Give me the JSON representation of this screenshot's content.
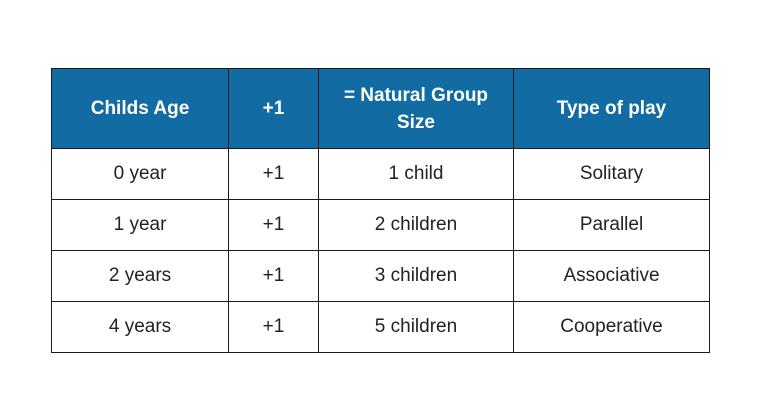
{
  "table": {
    "headers": [
      "Childs Age",
      "+1",
      "=  Natural Group Size",
      "Type of play"
    ],
    "rows": [
      [
        "0 year",
        "+1",
        "1 child",
        "Solitary"
      ],
      [
        "1 year",
        "+1",
        "2 children",
        "Parallel"
      ],
      [
        "2 years",
        "+1",
        "3 children",
        "Associative"
      ],
      [
        "4 years",
        "+1",
        "5 children",
        "Cooperative"
      ]
    ]
  },
  "colors": {
    "header_background": "#136ba3",
    "header_text": "#ffffff",
    "border": "#1a1a1a",
    "body_text": "#222222"
  }
}
